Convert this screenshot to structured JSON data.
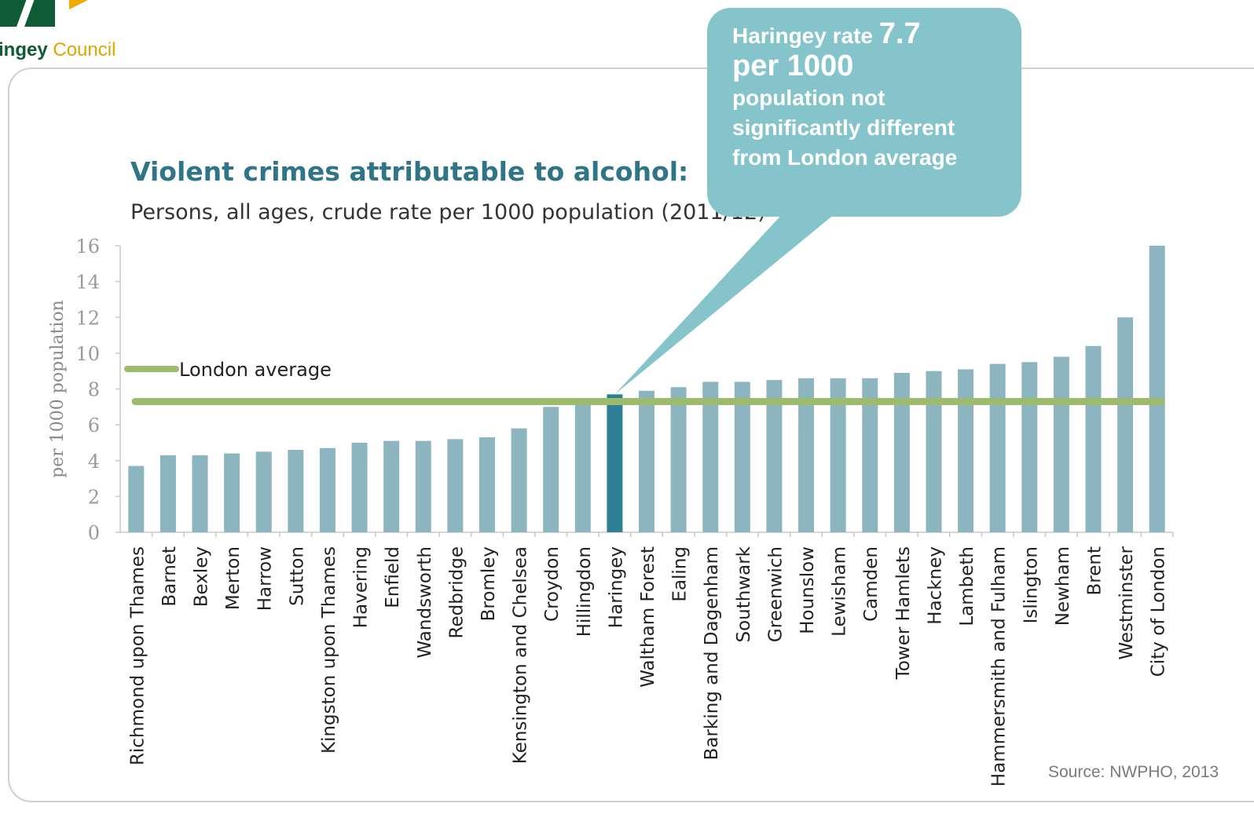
{
  "header": {
    "org_name_part1": "ingey",
    "org_name_part2": "Council"
  },
  "callout": {
    "line1_prefix": "Haringey rate",
    "line1_value": "7.7",
    "line2": "per 1000",
    "line3": "population not significantly different from London average"
  },
  "source": "Source: NWPHO, 2013",
  "colors": {
    "bar": "#8db5c0",
    "highlight_bar": "#2e7f93",
    "average_line": "#9dbb6c",
    "callout": "#86c4cb",
    "title": "#2f7487"
  },
  "chart_data": {
    "type": "bar",
    "title": "Violent crimes attributable to alcohol:",
    "subtitle": "Persons, all ages, crude rate per 1000 population (2011/12)",
    "ylabel": "per 1000 population",
    "ylim": [
      0,
      16
    ],
    "yticks": [
      "0",
      "2",
      "4",
      "6",
      "8",
      "10",
      "12",
      "14",
      "16"
    ],
    "legend_label": "London average",
    "reference_line": 7.3,
    "highlight": "Haringey",
    "categories": [
      "Richmond upon Thames",
      "Barnet",
      "Bexley",
      "Merton",
      "Harrow",
      "Sutton",
      "Kingston upon Thames",
      "Havering",
      "Enfield",
      "Wandsworth",
      "Redbridge",
      "Bromley",
      "Kensington and Chelsea",
      "Croydon",
      "Hillingdon",
      "Haringey",
      "Waltham Forest",
      "Ealing",
      "Barking and Dagenham",
      "Southwark",
      "Greenwich",
      "Hounslow",
      "Lewisham",
      "Camden",
      "Tower Hamlets",
      "Hackney",
      "Lambeth",
      "Hammersmith and Fulham",
      "Islington",
      "Newham",
      "Brent",
      "Westminster",
      "City of London"
    ],
    "values": [
      3.7,
      4.3,
      4.3,
      4.4,
      4.5,
      4.6,
      4.7,
      5.0,
      5.1,
      5.1,
      5.2,
      5.3,
      5.8,
      7.0,
      7.4,
      7.7,
      7.9,
      8.1,
      8.4,
      8.4,
      8.5,
      8.6,
      8.6,
      8.6,
      8.9,
      9.0,
      9.1,
      9.4,
      9.5,
      9.8,
      10.4,
      12.0,
      16.0
    ]
  }
}
